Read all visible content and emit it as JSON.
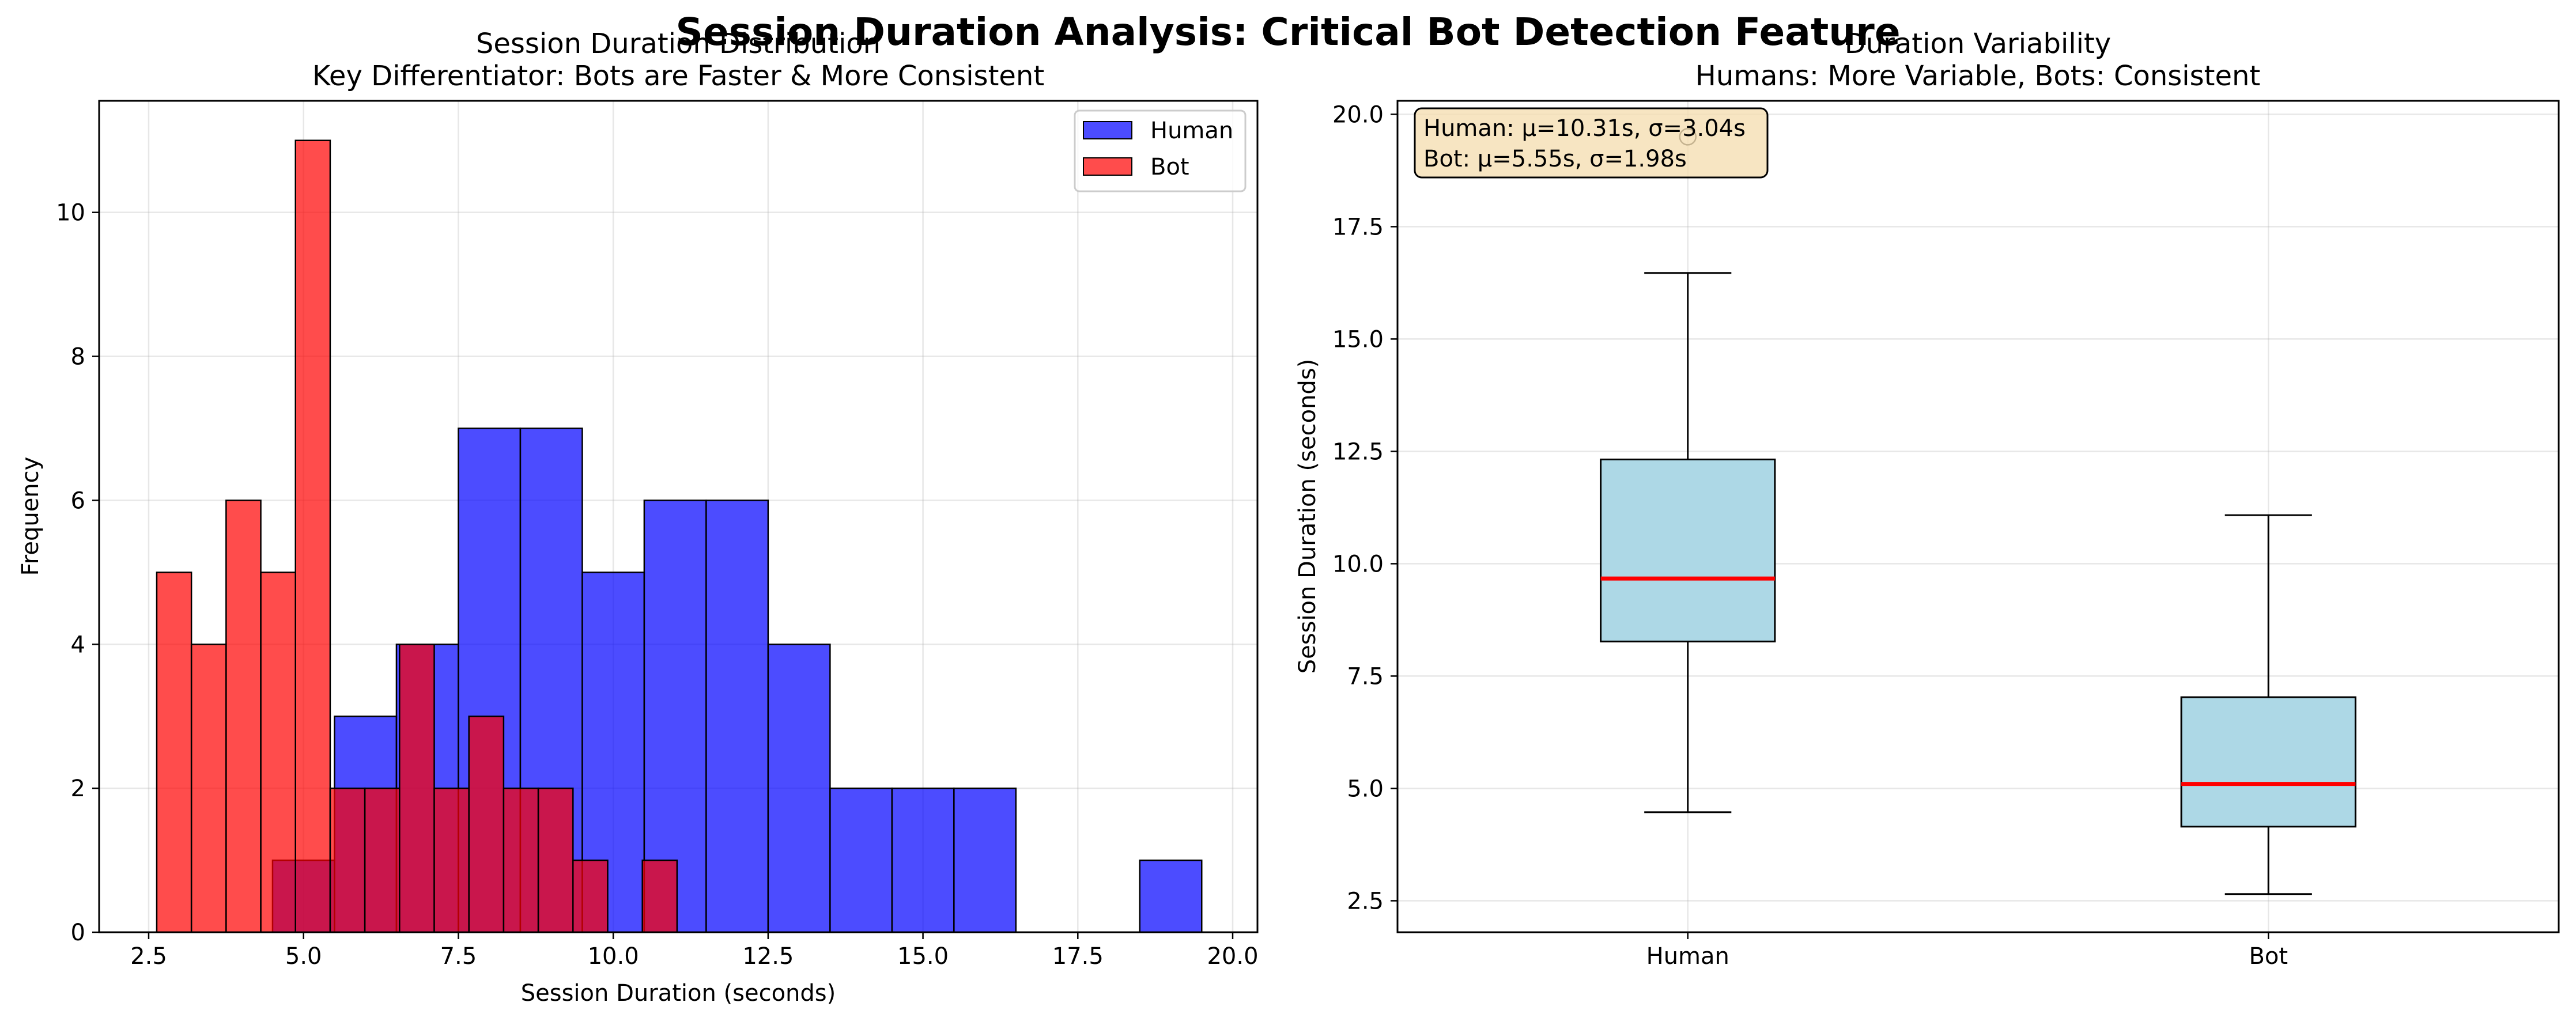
{
  "figure": {
    "title": "Session Duration Analysis: Critical Bot Detection Feature"
  },
  "colors": {
    "human": "#0000ff",
    "bot": "#ff0000",
    "box_fill": "#add8e6",
    "median": "#ff0000",
    "stats_box_fill": "#f5deb3"
  },
  "chart_data": [
    {
      "type": "bar",
      "subtype": "histogram",
      "title": "Session Duration Distribution",
      "subtitle": "Key Differentiator: Bots are Faster & More Consistent",
      "xlabel": "Session Duration (seconds)",
      "ylabel": "Frequency",
      "xlim": [
        1.7,
        20.4
      ],
      "ylim": [
        0,
        11.55
      ],
      "xticks": [
        2.5,
        5.0,
        7.5,
        10.0,
        12.5,
        15.0,
        17.5,
        20.0
      ],
      "xtick_labels": [
        "2.5",
        "5.0",
        "7.5",
        "10.0",
        "12.5",
        "15.0",
        "17.5",
        "20.0"
      ],
      "yticks": [
        0,
        2,
        4,
        6,
        8,
        10
      ],
      "ytick_labels": [
        "0",
        "2",
        "4",
        "6",
        "8",
        "10"
      ],
      "grid": true,
      "legend_position": "top-right",
      "series": [
        {
          "name": "Human",
          "color": "#0000ff",
          "bins": [
            {
              "x0": 4.5,
              "x1": 5.5,
              "count": 1
            },
            {
              "x0": 5.5,
              "x1": 6.5,
              "count": 3
            },
            {
              "x0": 6.5,
              "x1": 7.5,
              "count": 4
            },
            {
              "x0": 7.5,
              "x1": 8.5,
              "count": 7
            },
            {
              "x0": 8.5,
              "x1": 9.5,
              "count": 7
            },
            {
              "x0": 9.5,
              "x1": 10.5,
              "count": 5
            },
            {
              "x0": 10.5,
              "x1": 11.5,
              "count": 6
            },
            {
              "x0": 11.5,
              "x1": 12.5,
              "count": 6
            },
            {
              "x0": 12.5,
              "x1": 13.5,
              "count": 4
            },
            {
              "x0": 13.5,
              "x1": 14.5,
              "count": 2
            },
            {
              "x0": 14.5,
              "x1": 15.5,
              "count": 2
            },
            {
              "x0": 15.5,
              "x1": 16.5,
              "count": 2
            },
            {
              "x0": 18.5,
              "x1": 19.5,
              "count": 1
            }
          ]
        },
        {
          "name": "Bot",
          "color": "#ff0000",
          "bins": [
            {
              "x0": 2.63,
              "x1": 3.19,
              "count": 5
            },
            {
              "x0": 3.19,
              "x1": 3.75,
              "count": 4
            },
            {
              "x0": 3.75,
              "x1": 4.31,
              "count": 6
            },
            {
              "x0": 4.31,
              "x1": 4.87,
              "count": 5
            },
            {
              "x0": 4.87,
              "x1": 5.43,
              "count": 11
            },
            {
              "x0": 5.43,
              "x1": 5.99,
              "count": 2
            },
            {
              "x0": 5.99,
              "x1": 6.55,
              "count": 2
            },
            {
              "x0": 6.55,
              "x1": 7.11,
              "count": 4
            },
            {
              "x0": 7.11,
              "x1": 7.67,
              "count": 2
            },
            {
              "x0": 7.67,
              "x1": 8.23,
              "count": 3
            },
            {
              "x0": 8.23,
              "x1": 8.79,
              "count": 2
            },
            {
              "x0": 8.79,
              "x1": 9.35,
              "count": 2
            },
            {
              "x0": 9.35,
              "x1": 9.91,
              "count": 1
            },
            {
              "x0": 10.47,
              "x1": 11.03,
              "count": 1
            }
          ]
        }
      ]
    },
    {
      "type": "box",
      "title": "Duration Variability",
      "subtitle": "Humans: More Variable, Bots: Consistent",
      "xlabel": "",
      "ylabel": "Session Duration (seconds)",
      "ylim": [
        1.8,
        20.3
      ],
      "yticks": [
        2.5,
        5.0,
        7.5,
        10.0,
        12.5,
        15.0,
        17.5,
        20.0
      ],
      "ytick_labels": [
        "2.5",
        "5.0",
        "7.5",
        "10.0",
        "12.5",
        "15.0",
        "17.5",
        "20.0"
      ],
      "grid": true,
      "categories": [
        "Human",
        "Bot"
      ],
      "boxes": [
        {
          "name": "Human",
          "whisker_low": 4.47,
          "q1": 8.27,
          "median": 9.67,
          "q3": 12.32,
          "whisker_high": 16.47,
          "outliers": [
            19.5
          ]
        },
        {
          "name": "Bot",
          "whisker_low": 2.65,
          "q1": 4.15,
          "median": 5.1,
          "q3": 7.03,
          "whisker_high": 11.08,
          "outliers": []
        }
      ],
      "annotation": {
        "position": "top-left",
        "lines": [
          "Human: μ=10.31s, σ=3.04s",
          "Bot: μ=5.55s, σ=1.98s"
        ]
      }
    }
  ]
}
